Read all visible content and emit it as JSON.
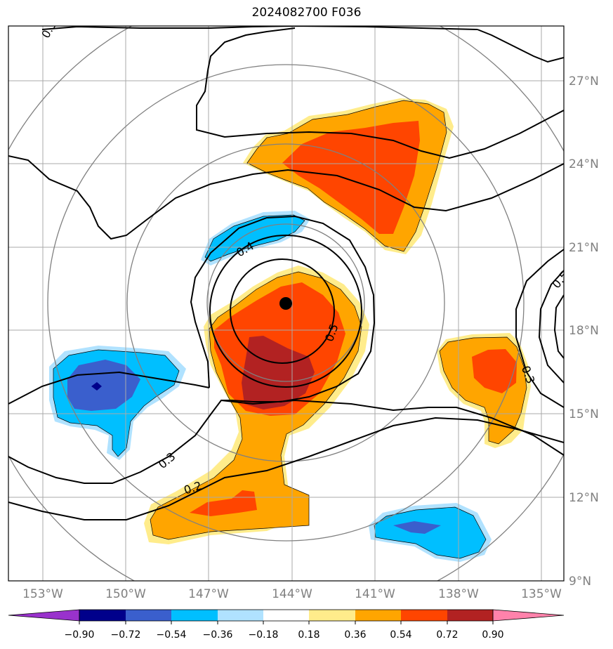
{
  "title": "2024082700 F036",
  "map": {
    "lon_labels": [
      "153°W",
      "150°W",
      "147°W",
      "144°W",
      "141°W",
      "138°W",
      "135°W"
    ],
    "lat_labels": [
      "27°N",
      "24°N",
      "21°N",
      "18°N",
      "15°N",
      "12°N",
      "9°N"
    ],
    "grid_color": "#a0a0a0",
    "range_ring_color": "#808080",
    "storm_center": {
      "lon": -144.3,
      "lat": 19.0
    },
    "contour_labels": [
      "0.4",
      "0.5",
      "0.3",
      "0.3",
      "0.2",
      "0.5",
      "0.3"
    ]
  },
  "colorbar": {
    "ticks": [
      "−0.90",
      "−0.72",
      "−0.54",
      "−0.36",
      "−0.18",
      "0.18",
      "0.36",
      "0.54",
      "0.72",
      "0.90"
    ],
    "colors": [
      "#9932cc",
      "#00008b",
      "#3a5fcd",
      "#00bfff",
      "#b0e2ff",
      "#ffffff",
      "#ffec8b",
      "#ffa500",
      "#ff4500",
      "#b22222",
      "#ff82ab"
    ],
    "extend": "both"
  }
}
